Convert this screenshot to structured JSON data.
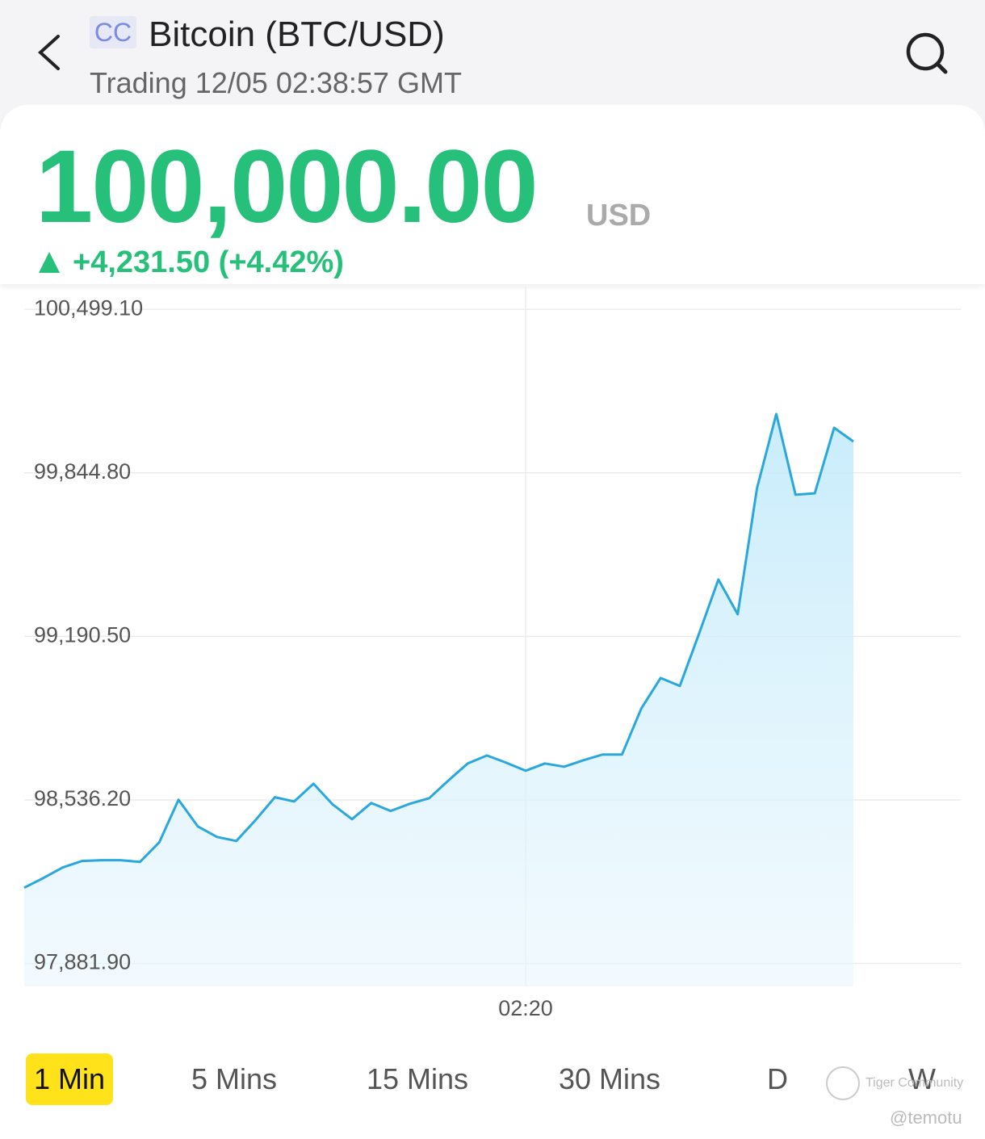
{
  "header": {
    "badge": "CC",
    "title": "Bitcoin (BTC/USD)",
    "status": "Trading 12/05 02:38:57 GMT"
  },
  "quote": {
    "price": "100,000.00",
    "currency": "USD",
    "change": "+4,231.50 (+4.42%)"
  },
  "chart_data": {
    "type": "line",
    "color": "#2aa7dc",
    "grid": true,
    "categories": [
      null,
      null,
      null,
      null,
      null,
      null,
      null,
      null,
      null,
      null,
      null,
      null,
      null,
      null,
      null,
      null,
      null,
      null,
      null,
      null,
      null,
      null,
      null,
      null,
      null,
      null,
      "02:20",
      null,
      null,
      null,
      null,
      null,
      null,
      null,
      null,
      null,
      null,
      null,
      null,
      null,
      null,
      null,
      null,
      null
    ],
    "values": [
      98185,
      98224,
      98266,
      98292,
      98295,
      98295,
      98288,
      98366,
      98537,
      98430,
      98388,
      98372,
      98456,
      98547,
      98530,
      98601,
      98518,
      98459,
      98524,
      98492,
      98521,
      98543,
      98614,
      98682,
      98714,
      98685,
      98653,
      98682,
      98669,
      98695,
      98718,
      98718,
      98902,
      99024,
      98992,
      99202,
      99418,
      99279,
      99783,
      100080,
      99757,
      99763,
      100025,
      99970
    ],
    "ylim": [
      97790,
      100590
    ],
    "yticks": [
      {
        "value": 100499.1,
        "label": "100,499.10"
      },
      {
        "value": 99844.8,
        "label": "99,844.80"
      },
      {
        "value": 99190.5,
        "label": "99,190.50"
      },
      {
        "value": 98536.2,
        "label": "98,536.20"
      },
      {
        "value": 97881.9,
        "label": "97,881.90"
      }
    ]
  },
  "tabs": {
    "items": [
      "1 Min",
      "5 Mins",
      "15 Mins",
      "30 Mins",
      "D",
      "W"
    ],
    "active": 0
  },
  "watermark": {
    "brand": "Tiger Community",
    "user": "@temotu"
  }
}
